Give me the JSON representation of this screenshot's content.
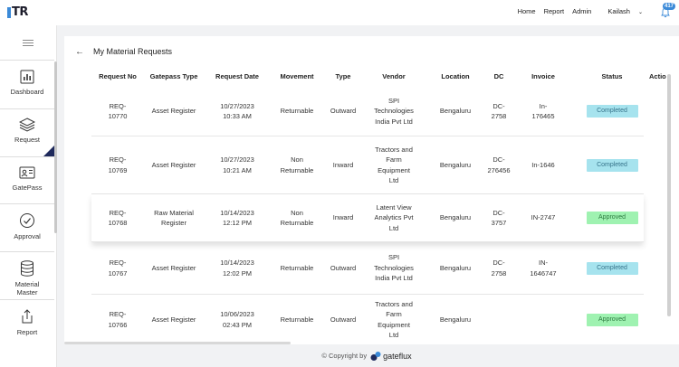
{
  "app": {
    "logo_text": "TR"
  },
  "topnav": {
    "home": "Home",
    "report": "Report",
    "admin": "Admin",
    "user": "Kailash",
    "notification_count": "417"
  },
  "sidebar": {
    "items": [
      {
        "label": "Dashboard",
        "icon": "dashboard-icon"
      },
      {
        "label": "Request",
        "icon": "layers-icon",
        "active": true
      },
      {
        "label": "GatePass",
        "icon": "id-card-icon"
      },
      {
        "label": "Approval",
        "icon": "check-circle-icon"
      },
      {
        "label": "Material Master",
        "icon": "database-icon"
      },
      {
        "label": "Report",
        "icon": "share-icon"
      }
    ]
  },
  "page": {
    "title": "My Material Requests"
  },
  "table": {
    "headers": [
      "Request No",
      "Gatepass Type",
      "Request Date",
      "Movement",
      "Type",
      "Vendor",
      "Location",
      "DC",
      "Invoice",
      "Status",
      "Actio"
    ],
    "rows": [
      {
        "request_no": "REQ-\n10770",
        "gatepass_type": "Asset Register",
        "request_date": "10/27/2023\n10:33 AM",
        "movement": "Returnable",
        "type": "Outward",
        "vendor": "SPI\nTechnologies\nIndia Pvt Ltd",
        "location": "Bengaluru",
        "dc": "DC-\n2758",
        "invoice": "In-\n176465",
        "status": "Completed"
      },
      {
        "request_no": "REQ-\n10769",
        "gatepass_type": "Asset Register",
        "request_date": "10/27/2023\n10:21 AM",
        "movement": "Non\nReturnable",
        "type": "Inward",
        "vendor": "Tractors and\nFarm\nEquipment\nLtd",
        "location": "Bengaluru",
        "dc": "DC-\n276456",
        "invoice": "In-1646",
        "status": "Completed"
      },
      {
        "request_no": "REQ-\n10768",
        "gatepass_type": "Raw Material\nRegister",
        "request_date": "10/14/2023\n12:12 PM",
        "movement": "Non\nReturnable",
        "type": "Inward",
        "vendor": "Latent View\nAnalytics Pvt\nLtd",
        "location": "Bengaluru",
        "dc": "DC-\n3757",
        "invoice": "IN-2747",
        "status": "Approved"
      },
      {
        "request_no": "REQ-\n10767",
        "gatepass_type": "Asset Register",
        "request_date": "10/14/2023\n12:02 PM",
        "movement": "Returnable",
        "type": "Outward",
        "vendor": "SPI\nTechnologies\nIndia Pvt Ltd",
        "location": "Bengaluru",
        "dc": "DC-\n2758",
        "invoice": "IN-\n1646747",
        "status": "Completed"
      },
      {
        "request_no": "REQ-\n10766",
        "gatepass_type": "Asset Register",
        "request_date": "10/06/2023\n02:43 PM",
        "movement": "Returnable",
        "type": "Outward",
        "vendor": "Tractors and\nFarm\nEquipment\nLtd",
        "location": "Bengaluru",
        "dc": "",
        "invoice": "",
        "status": "Approved"
      }
    ]
  },
  "footer": {
    "copyright": "© Copyright by",
    "brand": "gateflux"
  },
  "colors": {
    "completed_bg": "#a6e3ee",
    "approved_bg": "#9ff2b1",
    "accent": "#3b8ad8",
    "active_marker": "#1f2a5c"
  }
}
